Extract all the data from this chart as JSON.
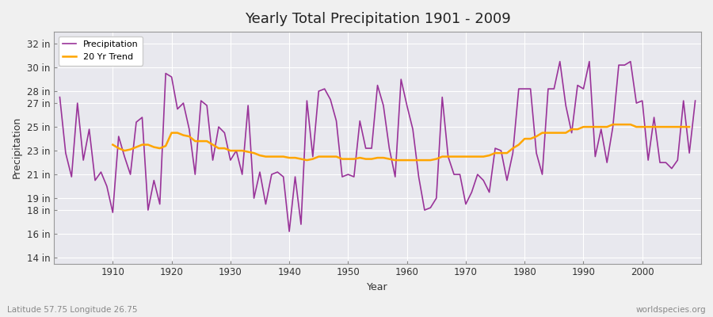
{
  "title": "Yearly Total Precipitation 1901 - 2009",
  "xlabel": "Year",
  "ylabel": "Precipitation",
  "subtitle": "Latitude 57.75 Longitude 26.75",
  "watermark": "worldspecies.org",
  "legend_precip": "Precipitation",
  "legend_trend": "20 Yr Trend",
  "precip_color": "#993399",
  "trend_color": "#FFA500",
  "fig_bg_color": "#f0f0f0",
  "plot_bg_color": "#e8e8ee",
  "grid_color": "#ffffff",
  "years": [
    1901,
    1902,
    1903,
    1904,
    1905,
    1906,
    1907,
    1908,
    1909,
    1910,
    1911,
    1912,
    1913,
    1914,
    1915,
    1916,
    1917,
    1918,
    1919,
    1920,
    1921,
    1922,
    1923,
    1924,
    1925,
    1926,
    1927,
    1928,
    1929,
    1930,
    1931,
    1932,
    1933,
    1934,
    1935,
    1936,
    1937,
    1938,
    1939,
    1940,
    1941,
    1942,
    1943,
    1944,
    1945,
    1946,
    1947,
    1948,
    1949,
    1950,
    1951,
    1952,
    1953,
    1954,
    1955,
    1956,
    1957,
    1958,
    1959,
    1960,
    1961,
    1962,
    1963,
    1964,
    1965,
    1966,
    1967,
    1968,
    1969,
    1970,
    1971,
    1972,
    1973,
    1974,
    1975,
    1976,
    1977,
    1978,
    1979,
    1980,
    1981,
    1982,
    1983,
    1984,
    1985,
    1986,
    1987,
    1988,
    1989,
    1990,
    1991,
    1992,
    1993,
    1994,
    1995,
    1996,
    1997,
    1998,
    1999,
    2000,
    2001,
    2002,
    2003,
    2004,
    2005,
    2006,
    2007,
    2008,
    2009
  ],
  "precip": [
    27.5,
    22.8,
    20.8,
    27.0,
    22.2,
    24.8,
    20.5,
    21.2,
    20.0,
    17.8,
    24.2,
    22.5,
    21.0,
    25.4,
    25.8,
    18.0,
    20.5,
    18.5,
    29.5,
    29.2,
    26.5,
    27.0,
    24.8,
    21.0,
    27.2,
    26.8,
    22.2,
    25.0,
    24.5,
    22.2,
    23.0,
    21.0,
    26.8,
    19.0,
    21.2,
    18.5,
    21.0,
    21.2,
    20.8,
    16.2,
    20.8,
    16.8,
    27.2,
    22.5,
    28.0,
    28.2,
    27.3,
    25.5,
    20.8,
    21.0,
    20.8,
    25.5,
    23.2,
    23.2,
    28.5,
    26.8,
    23.2,
    20.8,
    29.0,
    26.8,
    24.8,
    20.8,
    18.0,
    18.2,
    19.0,
    27.5,
    22.5,
    21.0,
    21.0,
    18.5,
    19.5,
    21.0,
    20.5,
    19.5,
    23.2,
    23.0,
    20.5,
    22.8,
    28.2,
    28.2,
    28.2,
    22.8,
    21.0,
    28.2,
    28.2,
    30.5,
    26.8,
    24.5,
    28.5,
    28.2,
    30.5,
    22.5,
    24.8,
    22.0,
    25.0,
    30.2,
    30.2,
    30.5,
    27.0,
    27.2,
    22.2,
    25.8,
    22.0,
    22.0,
    21.5,
    22.2,
    27.2,
    22.8,
    27.2
  ],
  "trend": [
    null,
    null,
    null,
    null,
    null,
    null,
    null,
    null,
    null,
    23.5,
    23.2,
    23.0,
    23.1,
    23.3,
    23.5,
    23.5,
    23.3,
    23.2,
    23.4,
    24.5,
    24.5,
    24.3,
    24.2,
    23.8,
    23.8,
    23.8,
    23.5,
    23.2,
    23.2,
    23.0,
    23.0,
    23.0,
    22.9,
    22.8,
    22.6,
    22.5,
    22.5,
    22.5,
    22.5,
    22.4,
    22.4,
    22.3,
    22.2,
    22.3,
    22.5,
    22.5,
    22.5,
    22.5,
    22.3,
    22.3,
    22.3,
    22.4,
    22.3,
    22.3,
    22.4,
    22.4,
    22.3,
    22.2,
    22.2,
    22.2,
    22.2,
    22.2,
    22.2,
    22.2,
    22.3,
    22.5,
    22.5,
    22.5,
    22.5,
    22.5,
    22.5,
    22.5,
    22.5,
    22.6,
    22.8,
    22.8,
    22.8,
    23.2,
    23.5,
    24.0,
    24.0,
    24.2,
    24.5,
    24.5,
    24.5,
    24.5,
    24.5,
    24.8,
    24.8,
    25.0,
    25.0,
    25.0,
    25.0,
    25.0,
    25.2,
    25.2,
    25.2,
    25.2,
    25.0,
    25.0,
    25.0,
    25.0,
    25.0,
    25.0,
    25.0,
    25.0,
    25.0,
    25.0
  ],
  "yticks": [
    14,
    16,
    18,
    19,
    21,
    23,
    25,
    27,
    28,
    30,
    32
  ],
  "ytick_labels": [
    "14 in",
    "16 in",
    "18 in",
    "19 in",
    "21 in",
    "23 in",
    "25 in",
    "27 in",
    "28 in",
    "30 in",
    "32 in"
  ],
  "ylim": [
    13.5,
    33.0
  ],
  "xlim": [
    1900,
    2010
  ],
  "xticks": [
    1910,
    1920,
    1930,
    1940,
    1950,
    1960,
    1970,
    1980,
    1990,
    2000
  ]
}
